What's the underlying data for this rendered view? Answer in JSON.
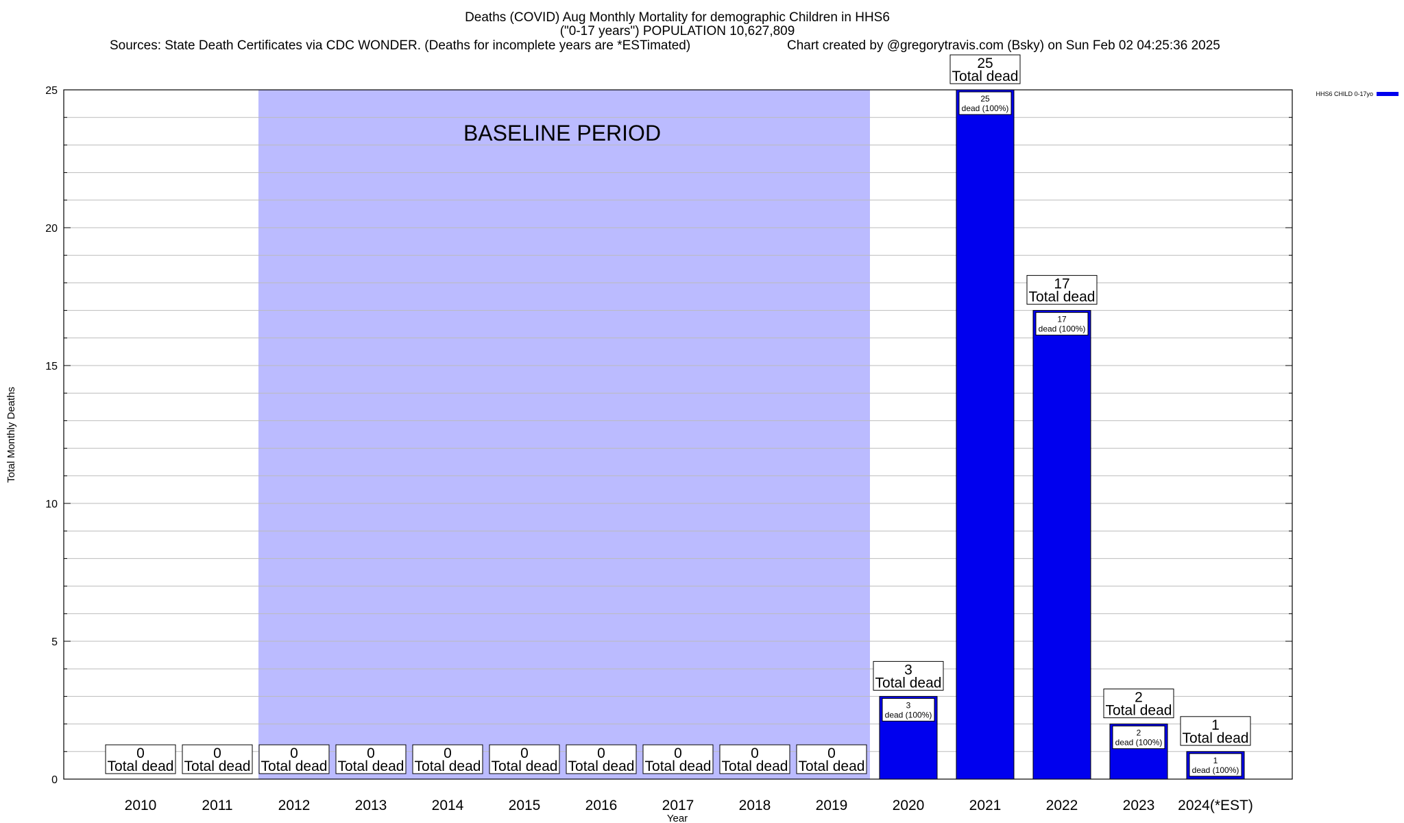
{
  "chart_data": {
    "type": "bar",
    "title": "Deaths (COVID) Aug Monthly Mortality for demographic Children in HHS6",
    "subtitle": "(\"0-17 years\") POPULATION 10,627,809",
    "sources": "Sources: State Death Certificates via CDC WONDER. (Deaths for incomplete years are *ESTimated)",
    "credit": "Chart created by @gregorytravis.com (Bsky) on Sun Feb 02 04:25:36 2025",
    "xlabel": "Year",
    "ylabel": "Total Monthly Deaths",
    "ylim": [
      0,
      25
    ],
    "yticks": [
      "0",
      "5",
      "10",
      "15",
      "20",
      "25"
    ],
    "grid": true,
    "legend_position": "top-right",
    "categories": [
      "2010",
      "2011",
      "2012",
      "2013",
      "2014",
      "2015",
      "2016",
      "2017",
      "2018",
      "2019",
      "2020",
      "2021",
      "2022",
      "2023",
      "2024(*EST)"
    ],
    "series": [
      {
        "name": "HHS6 CHILD 0-17yo",
        "color": "#0000ee",
        "values": [
          0,
          0,
          0,
          0,
          0,
          0,
          0,
          0,
          0,
          0,
          3,
          25,
          17,
          2,
          1
        ]
      }
    ],
    "total_labels": [
      "0",
      "0",
      "0",
      "0",
      "0",
      "0",
      "0",
      "0",
      "0",
      "0",
      "3",
      "25",
      "17",
      "2",
      "1"
    ],
    "total_suffix": "Total dead",
    "inner_labels": [
      {
        "index": 10,
        "value": "3",
        "text": "dead (100%)"
      },
      {
        "index": 11,
        "value": "25",
        "text": "dead (100%)"
      },
      {
        "index": 12,
        "value": "17",
        "text": "dead (100%)"
      },
      {
        "index": 13,
        "value": "2",
        "text": "dead (100%)"
      },
      {
        "index": 14,
        "value": "1",
        "text": "dead (100%)"
      }
    ],
    "baseline": {
      "label": "BASELINE PERIOD",
      "from": "2012",
      "to": "2019",
      "color": "#bbbbff"
    }
  }
}
